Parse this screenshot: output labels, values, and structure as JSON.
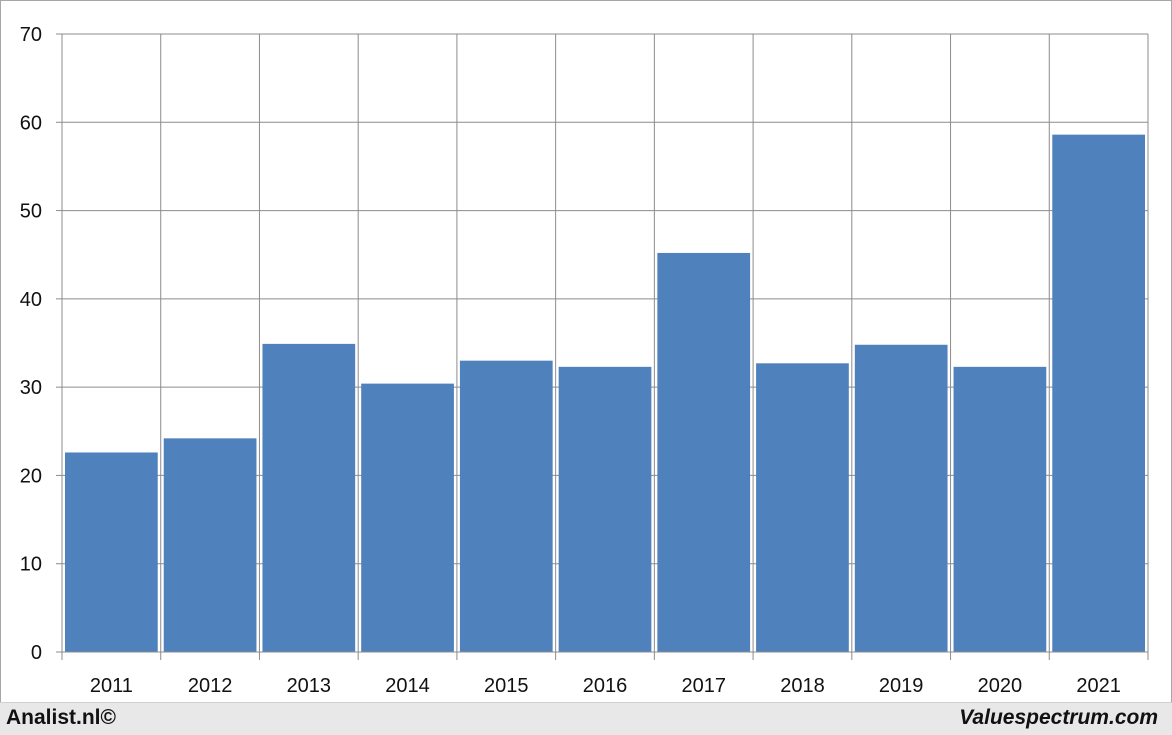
{
  "chart_data": {
    "type": "bar",
    "title": "",
    "xlabel": "",
    "ylabel": "",
    "categories": [
      "2011",
      "2012",
      "2013",
      "2014",
      "2015",
      "2016",
      "2017",
      "2018",
      "2019",
      "2020",
      "2021"
    ],
    "values": [
      22.6,
      24.2,
      34.9,
      30.4,
      33.0,
      32.3,
      45.2,
      32.7,
      34.8,
      32.3,
      58.6
    ],
    "ylim": [
      0,
      70
    ],
    "yticks": [
      "0",
      "10",
      "20",
      "30",
      "40",
      "50",
      "60",
      "70"
    ],
    "grid": true,
    "legend": "none",
    "colors": {
      "bar": "#4f81bd",
      "grid": "#8c8c8c"
    }
  },
  "footer": {
    "left_text": "Analist.nl©",
    "right_text": "Valuespectrum.com"
  }
}
